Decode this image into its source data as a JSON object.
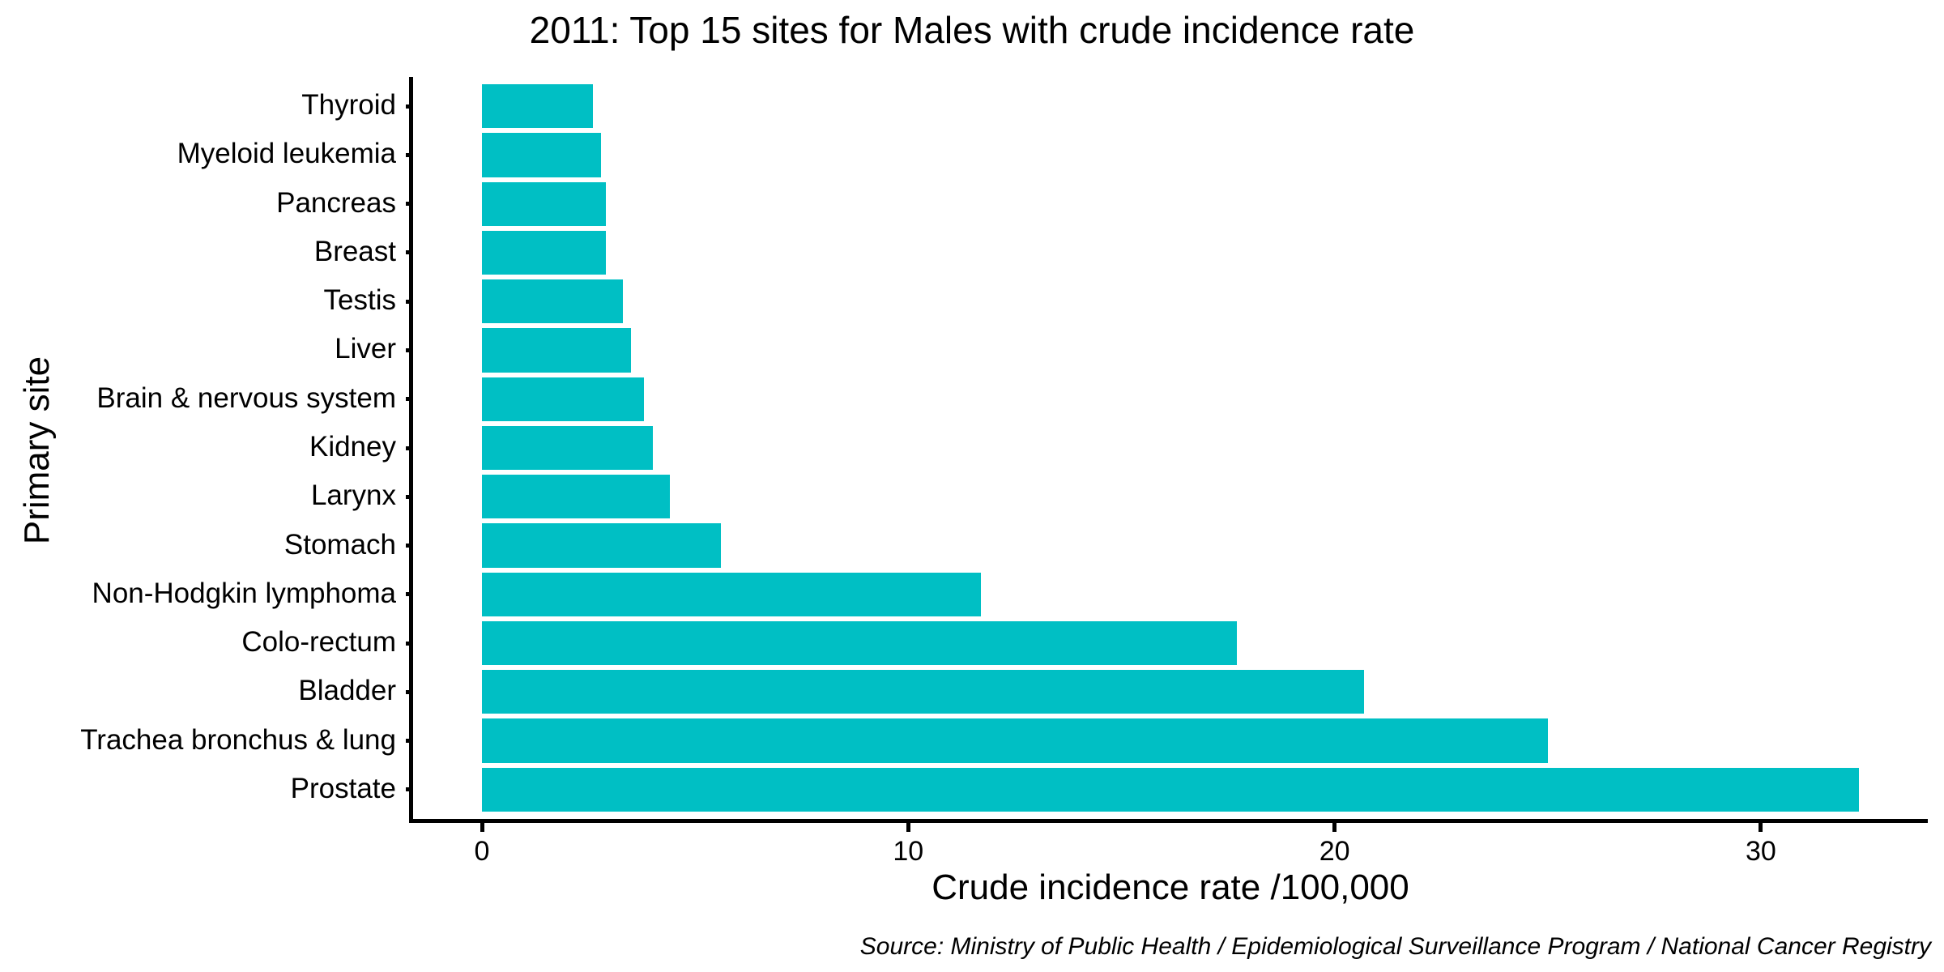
{
  "title": "2011: Top 15 sites for Males with crude incidence rate",
  "source_note": "Source: Ministry of Public Health / Epidemiological Surveillance Program / National Cancer Registry",
  "colors": {
    "bar_fill": "#00BFC4",
    "axis": "#000000",
    "background": "#FFFFFF"
  },
  "chart_data": {
    "type": "bar",
    "orientation": "horizontal",
    "title": "2011: Top 15 sites for Males with crude incidence rate",
    "xlabel": "Crude incidence rate /100,000",
    "ylabel": "Primary site",
    "categories": [
      "Thyroid",
      "Myeloid leukemia",
      "Pancreas",
      "Breast",
      "Testis",
      "Liver",
      "Brain & nervous system",
      "Kidney",
      "Larynx",
      "Stomach",
      "Non-Hodgkin lymphoma",
      "Colo-rectum",
      "Bladder",
      "Trachea bronchus & lung",
      "Prostate"
    ],
    "category_order": "top-to-bottom",
    "values": [
      2.6,
      2.8,
      2.9,
      2.9,
      3.3,
      3.5,
      3.8,
      4.0,
      4.4,
      5.6,
      11.7,
      17.7,
      20.7,
      25.0,
      32.3
    ],
    "x_ticks": [
      0,
      10,
      20,
      30
    ],
    "xlim": [
      0,
      32.3
    ],
    "grid": false,
    "legend": false
  }
}
